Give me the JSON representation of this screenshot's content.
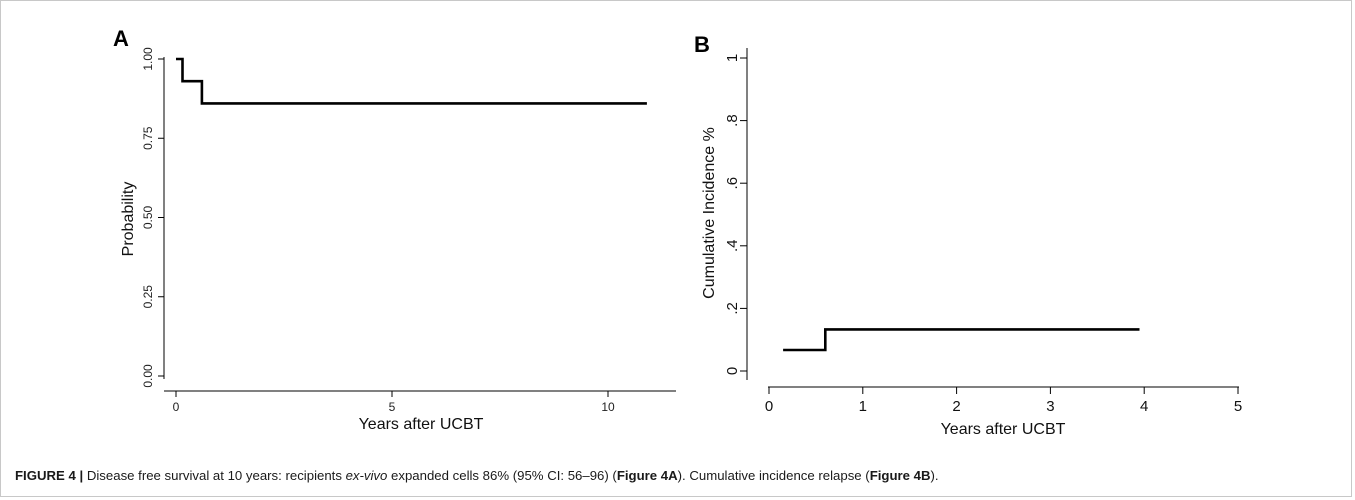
{
  "chart_data": [
    {
      "type": "line",
      "step": true,
      "panel": "A",
      "xlabel": "Years after UCBT",
      "ylabel": "Probability",
      "xlim": [
        0,
        11
      ],
      "ylim": [
        0,
        1
      ],
      "xticks": [
        0,
        5,
        10
      ],
      "xtick_labels": [
        "0",
        "5",
        "10"
      ],
      "yticks": [
        0,
        0.25,
        0.5,
        0.75,
        1
      ],
      "ytick_labels": [
        "0.00",
        "0.25",
        "0.50",
        "0.75",
        "1.00"
      ],
      "series": [
        {
          "x": [
            0,
            0.15,
            0.15,
            0.6,
            0.6,
            10.9
          ],
          "y": [
            1.0,
            1.0,
            0.93,
            0.93,
            0.86,
            0.86
          ]
        }
      ]
    },
    {
      "type": "line",
      "step": true,
      "panel": "B",
      "xlabel": "Years after UCBT",
      "ylabel": "Cumulative Incidence %",
      "xlim": [
        0,
        5
      ],
      "ylim": [
        0,
        1
      ],
      "xticks": [
        0,
        1,
        2,
        3,
        4,
        5
      ],
      "xtick_labels": [
        "0",
        "1",
        "2",
        "3",
        "4",
        "5"
      ],
      "yticks": [
        0,
        0.2,
        0.4,
        0.6,
        0.8,
        1
      ],
      "ytick_labels": [
        "0",
        ".2",
        ".4",
        ".6",
        ".8",
        "1"
      ],
      "series": [
        {
          "x": [
            0.15,
            0.6,
            0.6,
            3.95
          ],
          "y": [
            0.067,
            0.067,
            0.133,
            0.133
          ]
        }
      ]
    }
  ],
  "caption": {
    "label": "FIGURE 4 |",
    "t1": " Disease free survival at 10 years: recipients ",
    "italic": "ex-vivo",
    "t2": " expanded cells 86% (95% CI: 56–96) (",
    "ref_a": "Figure 4A",
    "t3": "). Cumulative incidence relapse (",
    "ref_b": "Figure 4B",
    "t4": ")."
  }
}
